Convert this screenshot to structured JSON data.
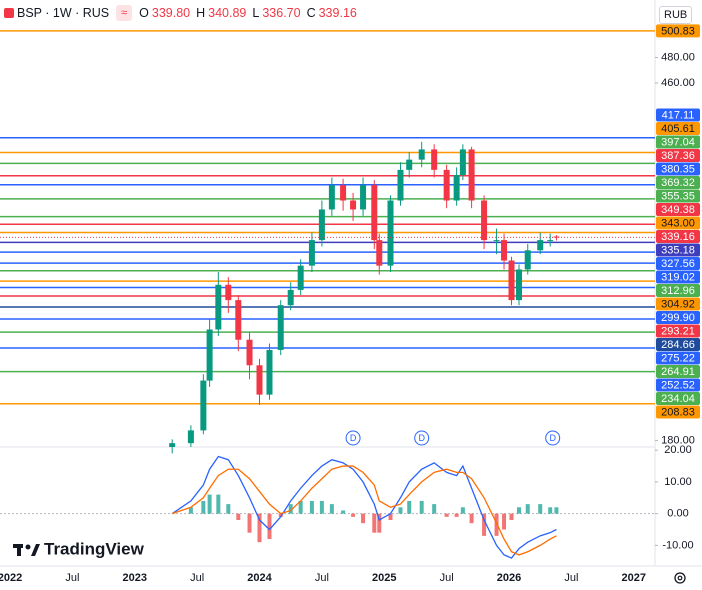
{
  "header": {
    "symbol": "BSP · 1W · RUS",
    "o": "O",
    "h": "H",
    "l": "L",
    "c": "C"
  },
  "currency": "RUB",
  "logo": "TradingView",
  "chart_data": [
    {
      "type": "candlestick",
      "x": [
        2023.3,
        2023.45,
        2023.55,
        2023.6,
        2023.67,
        2023.75,
        2023.83,
        2023.92,
        2024.0,
        2024.08,
        2024.17,
        2024.25,
        2024.33,
        2024.42,
        2024.5,
        2024.58,
        2024.67,
        2024.75,
        2024.83,
        2024.92,
        2024.96,
        2025.05,
        2025.13,
        2025.2,
        2025.3,
        2025.4,
        2025.5,
        2025.58,
        2025.63,
        2025.7,
        2025.8,
        2025.9,
        2025.96,
        2026.02,
        2026.08,
        2026.15,
        2026.25,
        2026.33,
        2026.38
      ],
      "open": [
        175,
        178,
        188,
        227,
        267,
        302,
        290,
        259,
        239,
        216,
        251,
        286,
        298,
        317,
        337,
        361,
        380,
        368,
        361,
        380,
        337,
        317,
        368,
        392,
        400,
        408,
        392,
        368,
        388,
        408,
        368,
        337,
        337,
        321,
        290,
        314,
        329,
        337,
        339.8
      ],
      "high": [
        181,
        192,
        232,
        275,
        312,
        308,
        294,
        265,
        244,
        256,
        290,
        304,
        322,
        343,
        368,
        386,
        385,
        374,
        386,
        384,
        342,
        372,
        398,
        406,
        414,
        412,
        396,
        394,
        412,
        410,
        372,
        346,
        342,
        324,
        318,
        334,
        343,
        342,
        340.89
      ],
      "low": [
        170,
        175,
        185,
        222,
        262,
        280,
        250,
        228,
        208,
        212,
        247,
        282,
        294,
        312,
        332,
        356,
        360,
        352,
        356,
        330,
        310,
        312,
        364,
        386,
        394,
        386,
        362,
        364,
        384,
        362,
        330,
        326,
        314,
        286,
        286,
        310,
        326,
        332,
        336.7
      ],
      "close": [
        178,
        188,
        227,
        267,
        302,
        290,
        259,
        239,
        216,
        251,
        286,
        298,
        317,
        337,
        361,
        380,
        368,
        361,
        380,
        337,
        317,
        368,
        392,
        400,
        408,
        392,
        368,
        388,
        408,
        368,
        337,
        337,
        321,
        290,
        314,
        329,
        337,
        337,
        339.16
      ],
      "ohlc_labels": {
        "open": "339.80",
        "high": "340.89",
        "low": "336.70",
        "close": "339.16"
      },
      "up_color": "#089981",
      "down_color": "#f23645",
      "xlim": [
        2021.92,
        2027.17
      ],
      "xticks": [
        {
          "value": 2022,
          "label": "2022"
        },
        {
          "value": 2022.5,
          "label": "Jul"
        },
        {
          "value": 2023,
          "label": "2023"
        },
        {
          "value": 2023.5,
          "label": "Jul"
        },
        {
          "value": 2024,
          "label": "2024"
        },
        {
          "value": 2024.5,
          "label": "Jul"
        },
        {
          "value": 2025,
          "label": "2025"
        },
        {
          "value": 2025.5,
          "label": "Jul"
        },
        {
          "value": 2026,
          "label": "2026"
        },
        {
          "value": 2026.5,
          "label": "Jul"
        },
        {
          "value": 2027,
          "label": "2027"
        }
      ],
      "ylim": [
        175,
        525
      ],
      "yticks": [
        {
          "value": 480,
          "label": "480.00"
        },
        {
          "value": 460,
          "label": "460.00"
        },
        {
          "value": 180,
          "label": "180.00"
        }
      ],
      "top_level": {
        "value": 500.83,
        "label": "500.83",
        "color": "#ff9800"
      },
      "levels": [
        {
          "value": 417.11,
          "label": "417.11",
          "color": "#2962ff"
        },
        {
          "value": 405.61,
          "label": "405.61",
          "color": "#ff9800"
        },
        {
          "value": 397.04,
          "label": "397.04",
          "color": "#4caf50"
        },
        {
          "value": 387.36,
          "label": "387.36",
          "color": "#f23645"
        },
        {
          "value": 380.35,
          "label": "380.35",
          "color": "#2962ff"
        },
        {
          "value": 369.32,
          "label": "369.32",
          "color": "#4caf50"
        },
        {
          "value": 355.35,
          "label": "355.35",
          "color": "#4caf50"
        },
        {
          "value": 349.38,
          "label": "349.38",
          "color": "#f23645"
        },
        {
          "value": 343,
          "label": "343.00",
          "color": "#ff9800"
        },
        {
          "value": 335.18,
          "label": "335.18",
          "color": "#3d3dbd"
        },
        {
          "value": 327.56,
          "label": "327.56",
          "color": "#2962ff"
        },
        {
          "value": 319.02,
          "label": "319.02",
          "color": "#2962ff"
        },
        {
          "value": 312.96,
          "label": "312.96",
          "color": "#4caf50"
        },
        {
          "value": 304.92,
          "label": "304.92",
          "color": "#ff9800"
        },
        {
          "value": 299.9,
          "label": "299.90",
          "color": "#2962ff"
        },
        {
          "value": 293.21,
          "label": "293.21",
          "color": "#f23645"
        },
        {
          "value": 284.66,
          "label": "284.66",
          "color": "#1e4b9c"
        },
        {
          "value": 275.22,
          "label": "275.22",
          "color": "#2962ff"
        },
        {
          "value": 264.91,
          "label": "264.91",
          "color": "#4caf50"
        },
        {
          "value": 252.52,
          "label": "252.52",
          "color": "#2962ff"
        },
        {
          "value": 234.04,
          "label": "234.04",
          "color": "#4caf50"
        },
        {
          "value": 208.83,
          "label": "208.83",
          "color": "#ff9800"
        }
      ],
      "events": [
        {
          "x": 2024.75,
          "label": "D"
        },
        {
          "x": 2025.3,
          "label": "D"
        },
        {
          "x": 2026.35,
          "label": "D"
        }
      ]
    },
    {
      "type": "macd",
      "x": [
        2023.3,
        2023.45,
        2023.55,
        2023.6,
        2023.67,
        2023.75,
        2023.83,
        2023.92,
        2024.0,
        2024.08,
        2024.17,
        2024.25,
        2024.33,
        2024.42,
        2024.5,
        2024.58,
        2024.67,
        2024.75,
        2024.83,
        2024.92,
        2024.96,
        2025.05,
        2025.13,
        2025.2,
        2025.3,
        2025.4,
        2025.5,
        2025.58,
        2025.63,
        2025.7,
        2025.8,
        2025.9,
        2025.96,
        2026.02,
        2026.08,
        2026.15,
        2026.25,
        2026.33,
        2026.38
      ],
      "histogram": {
        "values": [
          0,
          2,
          4,
          6,
          6,
          3,
          -2,
          -6,
          -9,
          -8,
          -1,
          3,
          4,
          4,
          4,
          3,
          1,
          -1,
          -3,
          -6,
          -6,
          -2,
          2,
          4,
          4,
          3,
          -1,
          -1,
          2,
          -3,
          -7,
          -7,
          -5,
          -2,
          2,
          3,
          3,
          2,
          2
        ],
        "up_color": "#26a69a",
        "down_color": "#ef5350"
      },
      "series": [
        {
          "color": "#2962ff",
          "values": [
            0,
            4,
            9,
            14,
            18,
            17,
            12,
            5,
            -2,
            -5,
            -1,
            4,
            8,
            12,
            15,
            17,
            16,
            14,
            10,
            3,
            -2,
            0,
            5,
            10,
            14,
            16,
            13,
            12,
            15,
            8,
            -2,
            -10,
            -13,
            -14,
            -11,
            -9,
            -7,
            -6,
            -5
          ]
        },
        {
          "color": "#ff6d00",
          "values": [
            0,
            2,
            5,
            8,
            12,
            14,
            14,
            11,
            7,
            3,
            0,
            1,
            4,
            8,
            11,
            14,
            15,
            15,
            13,
            9,
            4,
            2,
            3,
            6,
            10,
            13,
            14,
            13,
            13,
            11,
            5,
            -3,
            -8,
            -12,
            -13,
            -12,
            -10,
            -8,
            -7
          ]
        }
      ],
      "ylim": [
        -16.5,
        21
      ],
      "yticks": [
        {
          "value": 20,
          "label": "20.00"
        },
        {
          "value": 10,
          "label": "10.00"
        },
        {
          "value": 0,
          "label": "0.00"
        },
        {
          "value": -10,
          "label": "-10.00"
        }
      ]
    }
  ]
}
